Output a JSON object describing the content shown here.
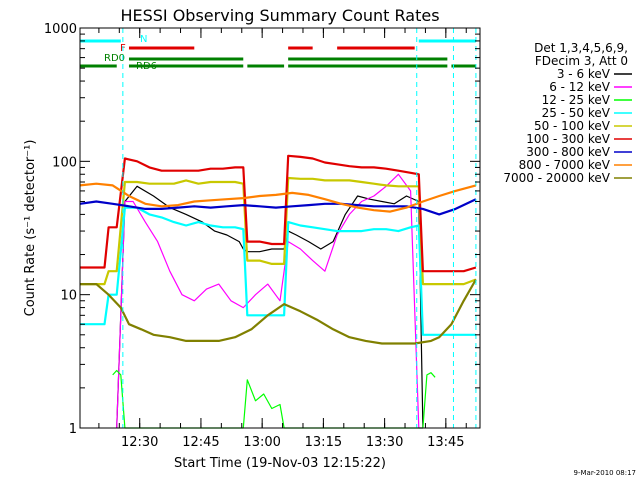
{
  "chart_data": {
    "type": "line",
    "title": "HESSI Observing Summary Count Rates",
    "xlabel": "Start Time (19-Nov-03 12:15:22)",
    "ylabel": "Count Rate (s⁻¹ detector⁻¹)",
    "y_scale": "log",
    "ylim": [
      1,
      1000
    ],
    "xlim_minutes_after_start": [
      0,
      98
    ],
    "x_ticks": [
      "12:30",
      "12:45",
      "13:00",
      "13:15",
      "13:30",
      "13:45"
    ],
    "y_ticks": [
      "1",
      "10",
      "100",
      "1000"
    ],
    "legend": {
      "placement": "right",
      "header": [
        "Det 1,3,4,5,6,9,",
        "FDecim 3, Att 0"
      ]
    },
    "flags": [
      {
        "name": "N",
        "color": "#00ffff",
        "segments": [
          [
            0,
            10
          ],
          [
            83,
            97
          ]
        ]
      },
      {
        "name": "F",
        "color": "#e00000",
        "segments": [
          [
            12,
            28
          ],
          [
            51,
            57
          ],
          [
            63,
            82
          ]
        ]
      },
      {
        "name": "RD0",
        "color": "#008000",
        "segments": [
          [
            12,
            40
          ],
          [
            51,
            90
          ]
        ]
      },
      {
        "name": "RD6",
        "color": "#008000",
        "segments": [
          [
            0,
            9
          ],
          [
            12,
            40
          ],
          [
            41,
            50
          ],
          [
            51,
            90
          ],
          [
            91,
            97
          ]
        ]
      }
    ],
    "series": [
      {
        "name": "3 - 6 keV",
        "color": "#000000",
        "x": [
          9,
          11,
          14,
          18,
          22,
          26,
          30,
          33,
          36,
          39,
          40,
          41,
          44,
          47,
          50,
          51,
          53,
          56,
          59,
          62,
          65,
          68,
          71,
          74,
          77,
          80,
          83,
          84
        ],
        "y": [
          1,
          50,
          65,
          55,
          45,
          40,
          35,
          30,
          28,
          25,
          22,
          21,
          21,
          22,
          22,
          30,
          28,
          25,
          22,
          25,
          40,
          55,
          52,
          50,
          48,
          55,
          50,
          1
        ]
      },
      {
        "name": "6 - 12 keV",
        "color": "#ff00ff",
        "x": [
          9,
          11,
          13,
          16,
          19,
          22,
          25,
          28,
          31,
          34,
          37,
          40,
          43,
          46,
          49,
          51,
          54,
          57,
          60,
          63,
          66,
          69,
          72,
          75,
          78,
          81,
          83,
          84
        ],
        "y": [
          1,
          50,
          50,
          35,
          25,
          15,
          10,
          9,
          11,
          12,
          9,
          8,
          10,
          12,
          9,
          25,
          22,
          18,
          15,
          28,
          40,
          50,
          55,
          65,
          80,
          60,
          1,
          1
        ]
      },
      {
        "name": "12 - 25 keV",
        "color": "#00ff00",
        "x": [
          8,
          9,
          10,
          11,
          40,
          41,
          43,
          45,
          47,
          49,
          50,
          84,
          85,
          86,
          87
        ],
        "y": [
          2.5,
          2.7,
          2.5,
          1,
          1,
          2.3,
          1.6,
          1.8,
          1.4,
          1.5,
          1,
          1,
          2.5,
          2.6,
          2.4
        ]
      },
      {
        "name": "25 - 50 keV",
        "color": "#00ffff",
        "x": [
          0,
          6,
          7,
          9,
          11,
          14,
          17,
          20,
          23,
          26,
          29,
          32,
          35,
          38,
          40,
          41,
          44,
          47,
          50,
          51,
          54,
          57,
          60,
          63,
          66,
          69,
          72,
          75,
          78,
          81,
          83,
          84,
          88,
          94,
          97
        ],
        "y": [
          6,
          6,
          10,
          10,
          45,
          45,
          40,
          38,
          35,
          33,
          35,
          33,
          32,
          32,
          31,
          7,
          7,
          7,
          7,
          35,
          33,
          32,
          31,
          30,
          30,
          30,
          31,
          31,
          30,
          32,
          33,
          5,
          5,
          5,
          5
        ]
      },
      {
        "name": "50 - 100 keV",
        "color": "#c8c800",
        "x": [
          0,
          6,
          7,
          9,
          11,
          14,
          17,
          20,
          23,
          26,
          29,
          32,
          35,
          38,
          40,
          41,
          44,
          47,
          50,
          51,
          54,
          57,
          60,
          63,
          66,
          69,
          72,
          75,
          78,
          81,
          83,
          84,
          88,
          94,
          97
        ],
        "y": [
          12,
          12,
          15,
          15,
          70,
          70,
          68,
          68,
          68,
          72,
          68,
          70,
          70,
          70,
          68,
          18,
          18,
          17,
          17,
          75,
          74,
          74,
          72,
          72,
          72,
          70,
          68,
          66,
          65,
          65,
          65,
          12,
          12,
          12,
          13
        ]
      },
      {
        "name": "100 - 300 keV",
        "color": "#e00000",
        "x": [
          0,
          6,
          7,
          9,
          11,
          14,
          17,
          20,
          23,
          26,
          29,
          32,
          35,
          38,
          40,
          41,
          44,
          47,
          50,
          51,
          54,
          57,
          60,
          63,
          66,
          69,
          72,
          75,
          78,
          81,
          83,
          84,
          88,
          94,
          97
        ],
        "y": [
          16,
          16,
          32,
          32,
          105,
          100,
          90,
          85,
          85,
          85,
          85,
          88,
          88,
          90,
          90,
          25,
          25,
          24,
          24,
          110,
          108,
          105,
          98,
          95,
          92,
          90,
          90,
          88,
          85,
          82,
          80,
          15,
          15,
          15,
          16
        ]
      },
      {
        "name": "300 - 800 keV",
        "color": "#0000c8",
        "x": [
          0,
          4,
          8,
          12,
          16,
          20,
          24,
          28,
          32,
          36,
          40,
          44,
          48,
          52,
          56,
          60,
          64,
          68,
          72,
          76,
          80,
          84,
          88,
          92,
          97
        ],
        "y": [
          48,
          50,
          48,
          46,
          44,
          44,
          45,
          46,
          45,
          46,
          47,
          46,
          45,
          46,
          47,
          48,
          48,
          47,
          46,
          46,
          46,
          44,
          40,
          44,
          52
        ]
      },
      {
        "name": "800 - 7000 keV",
        "color": "#ff8000",
        "x": [
          0,
          4,
          8,
          12,
          16,
          20,
          24,
          28,
          32,
          36,
          40,
          44,
          48,
          52,
          56,
          60,
          64,
          68,
          72,
          76,
          80,
          84,
          88,
          92,
          97
        ],
        "y": [
          66,
          68,
          66,
          55,
          48,
          46,
          47,
          50,
          51,
          52,
          53,
          55,
          56,
          58,
          56,
          52,
          48,
          45,
          43,
          42,
          45,
          50,
          55,
          60,
          66
        ]
      },
      {
        "name": "7000 - 20000 keV",
        "color": "#808000",
        "x": [
          0,
          4,
          7,
          10,
          12,
          15,
          18,
          22,
          26,
          30,
          34,
          38,
          42,
          46,
          50,
          54,
          58,
          62,
          66,
          70,
          74,
          78,
          82,
          86,
          88,
          91,
          94,
          97
        ],
        "y": [
          12,
          12,
          10,
          8,
          6,
          5.5,
          5,
          4.8,
          4.5,
          4.5,
          4.5,
          4.8,
          5.5,
          7,
          8.5,
          7.5,
          6.5,
          5.5,
          4.8,
          4.5,
          4.3,
          4.3,
          4.3,
          4.5,
          4.8,
          6,
          9,
          13
        ]
      }
    ]
  },
  "footer": {
    "date_stamp": "9-Mar-2010 08:17"
  }
}
